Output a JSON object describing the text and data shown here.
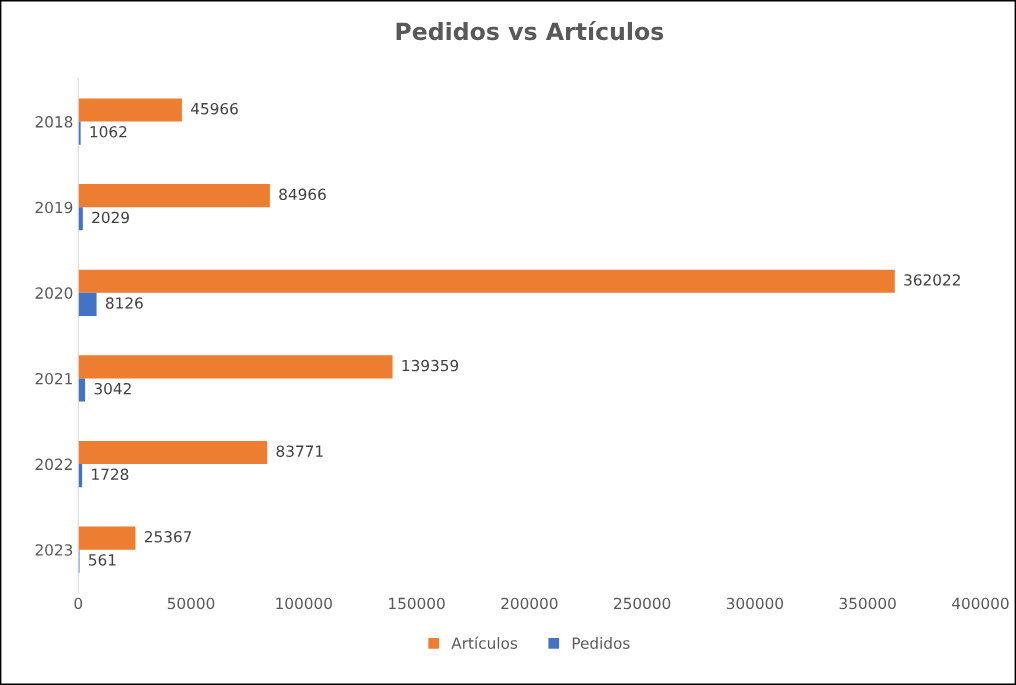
{
  "chart_data": {
    "type": "bar",
    "orientation": "horizontal",
    "title": "Pedidos vs Artículos",
    "categories": [
      "2018",
      "2019",
      "2020",
      "2021",
      "2022",
      "2023"
    ],
    "series": [
      {
        "name": "Artículos",
        "color": "#ed7d31",
        "values": [
          45966,
          84966,
          362022,
          139359,
          83771,
          25367
        ]
      },
      {
        "name": "Pedidos",
        "color": "#4472c4",
        "values": [
          1062,
          2029,
          8126,
          3042,
          1728,
          561
        ]
      }
    ],
    "xlim": [
      0,
      400000
    ],
    "xticks": [
      0,
      50000,
      100000,
      150000,
      200000,
      250000,
      300000,
      350000,
      400000
    ],
    "grid": false,
    "legend": "bottom",
    "data_labels": true
  }
}
